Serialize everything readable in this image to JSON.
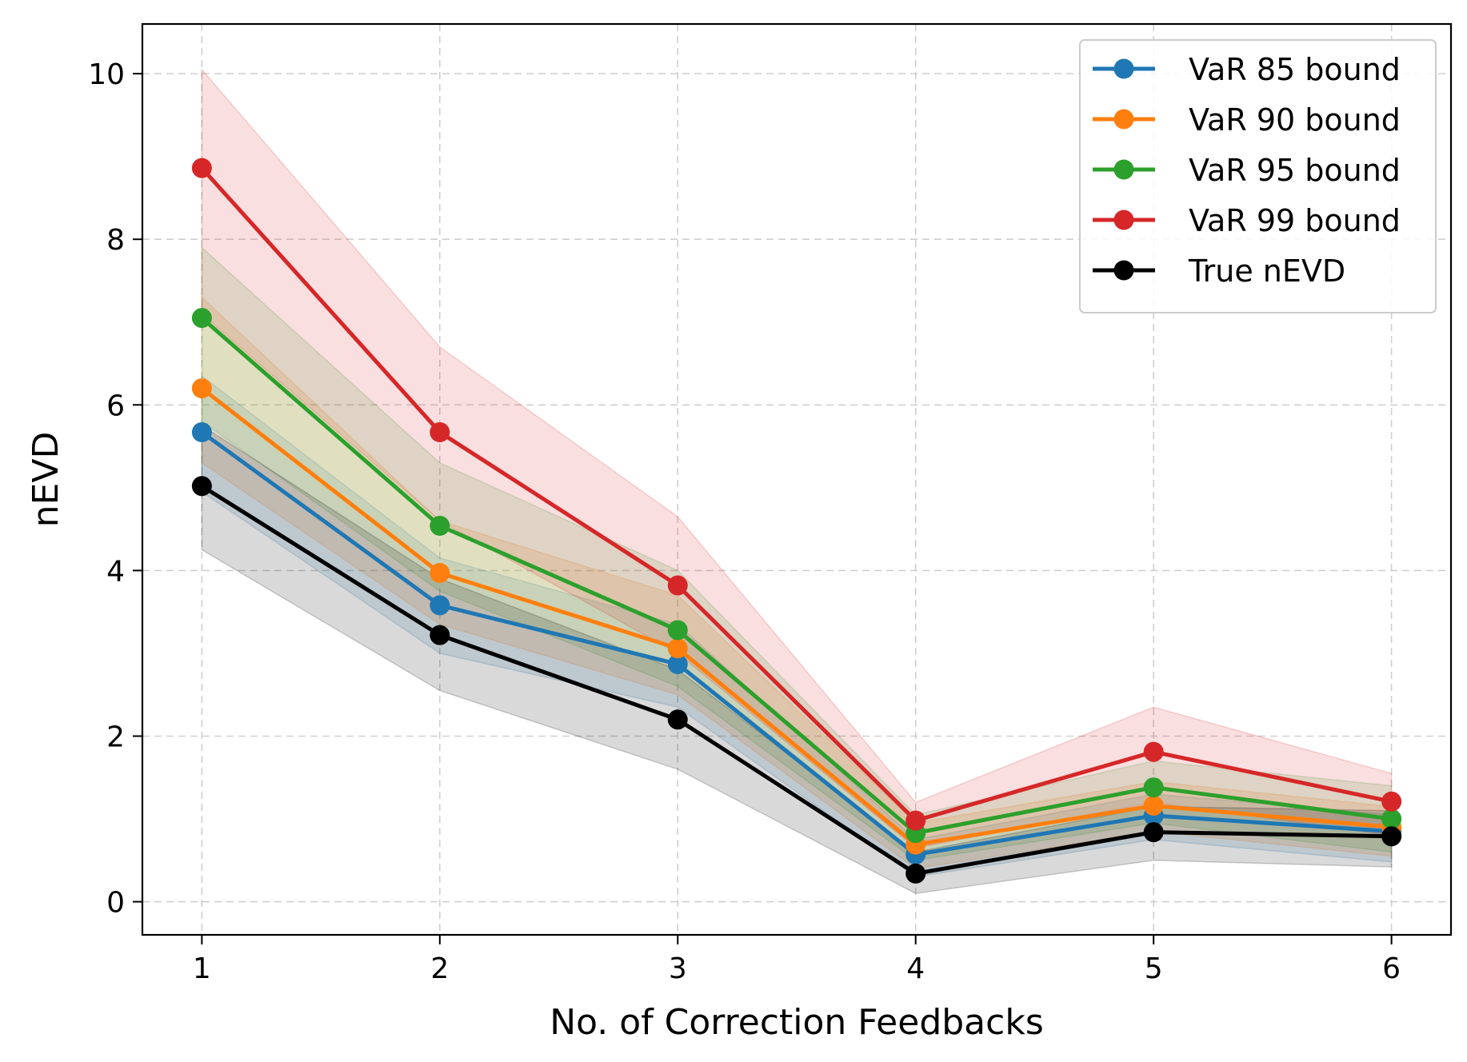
{
  "chart_data": {
    "type": "line",
    "title": "",
    "xlabel": "No. of Correction Feedbacks",
    "ylabel": "nEVD",
    "x": [
      1,
      2,
      3,
      4,
      5,
      6
    ],
    "xlim": [
      0.75,
      6.25
    ],
    "ylim": [
      -0.4,
      10.6
    ],
    "xticks": [
      1,
      2,
      3,
      4,
      5,
      6
    ],
    "yticks": [
      0,
      2,
      4,
      6,
      8,
      10
    ],
    "grid": true,
    "legend_position": "top-right",
    "series": [
      {
        "name": "VaR 85 bound",
        "color": "#1f77b4",
        "values": [
          5.67,
          3.58,
          2.87,
          0.57,
          1.04,
          0.85
        ],
        "band_low": [
          4.95,
          3.0,
          2.35,
          0.3,
          0.75,
          0.48
        ],
        "band_high": [
          6.35,
          4.15,
          3.35,
          0.75,
          1.3,
          1.05
        ]
      },
      {
        "name": "VaR 90 bound",
        "color": "#ff7f0e",
        "values": [
          6.2,
          3.97,
          3.06,
          0.69,
          1.16,
          0.9
        ],
        "band_low": [
          5.3,
          3.35,
          2.5,
          0.4,
          0.85,
          0.55
        ],
        "band_high": [
          7.3,
          4.6,
          3.7,
          0.95,
          1.45,
          1.15
        ]
      },
      {
        "name": "VaR 95 bound",
        "color": "#2ca02c",
        "values": [
          7.05,
          4.54,
          3.28,
          0.83,
          1.38,
          1.0
        ],
        "band_low": [
          5.8,
          3.75,
          2.6,
          0.5,
          0.95,
          0.6
        ],
        "band_high": [
          7.9,
          5.3,
          4.0,
          1.05,
          1.7,
          1.4
        ]
      },
      {
        "name": "VaR 99 bound",
        "color": "#d62728",
        "values": [
          8.86,
          5.67,
          3.82,
          0.98,
          1.81,
          1.21
        ],
        "band_low": [
          7.1,
          4.6,
          3.0,
          0.65,
          1.2,
          0.8
        ],
        "band_high": [
          10.05,
          6.7,
          4.65,
          1.2,
          2.35,
          1.55
        ]
      },
      {
        "name": "True nEVD",
        "color": "#000000",
        "values": [
          5.02,
          3.22,
          2.2,
          0.34,
          0.84,
          0.79
        ],
        "band_low": [
          4.25,
          2.55,
          1.6,
          0.1,
          0.5,
          0.42
        ],
        "band_high": [
          5.75,
          3.9,
          2.8,
          0.6,
          1.15,
          1.1
        ]
      }
    ]
  }
}
